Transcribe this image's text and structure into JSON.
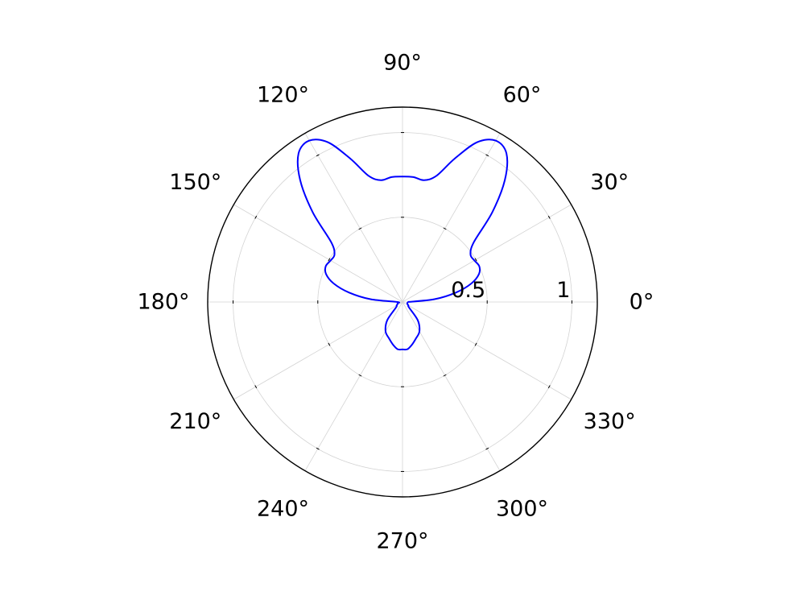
{
  "chart_data": {
    "type": "line",
    "polar": true,
    "title": "",
    "grid": true,
    "angle_unit": "degrees",
    "theta_ticks": [
      0,
      30,
      60,
      90,
      120,
      150,
      180,
      210,
      240,
      270,
      300,
      330
    ],
    "theta_tick_labels": [
      "0°",
      "30°",
      "60°",
      "90°",
      "120°",
      "150°",
      "180°",
      "210°",
      "240°",
      "270°",
      "300°",
      "330°"
    ],
    "r_ticks": [
      0.5,
      1
    ],
    "r_tick_labels": [
      "0.5",
      "1"
    ],
    "rlim": [
      0,
      1.15
    ],
    "colors": {
      "series": "#0000ff",
      "axis": "#000000",
      "grid": "#d3d3d3"
    },
    "series": [
      {
        "theta": [
          0,
          5,
          10,
          15,
          20,
          25,
          30,
          35,
          40,
          45,
          50,
          55,
          60,
          65,
          70,
          75,
          80,
          85,
          90,
          95,
          100,
          105,
          110,
          115,
          120,
          125,
          130,
          135,
          140,
          145,
          150,
          155,
          160,
          165,
          170,
          175,
          180,
          190,
          200,
          210,
          220,
          230,
          240,
          250,
          258,
          264,
          270,
          276,
          282,
          290,
          300,
          310,
          320,
          330,
          340,
          350,
          360
        ],
        "r": [
          0.03,
          0.19,
          0.32,
          0.42,
          0.48,
          0.5,
          0.49,
          0.49,
          0.55,
          0.75,
          0.94,
          1.07,
          1.1,
          1.04,
          0.9,
          0.77,
          0.73,
          0.74,
          0.74,
          0.74,
          0.73,
          0.77,
          0.9,
          1.04,
          1.1,
          1.07,
          0.94,
          0.75,
          0.55,
          0.49,
          0.49,
          0.5,
          0.48,
          0.42,
          0.32,
          0.19,
          0.03,
          0.03,
          0.03,
          0.04,
          0.05,
          0.14,
          0.2,
          0.23,
          0.26,
          0.28,
          0.28,
          0.28,
          0.26,
          0.23,
          0.2,
          0.14,
          0.05,
          0.04,
          0.03,
          0.03,
          0.03
        ]
      }
    ]
  }
}
